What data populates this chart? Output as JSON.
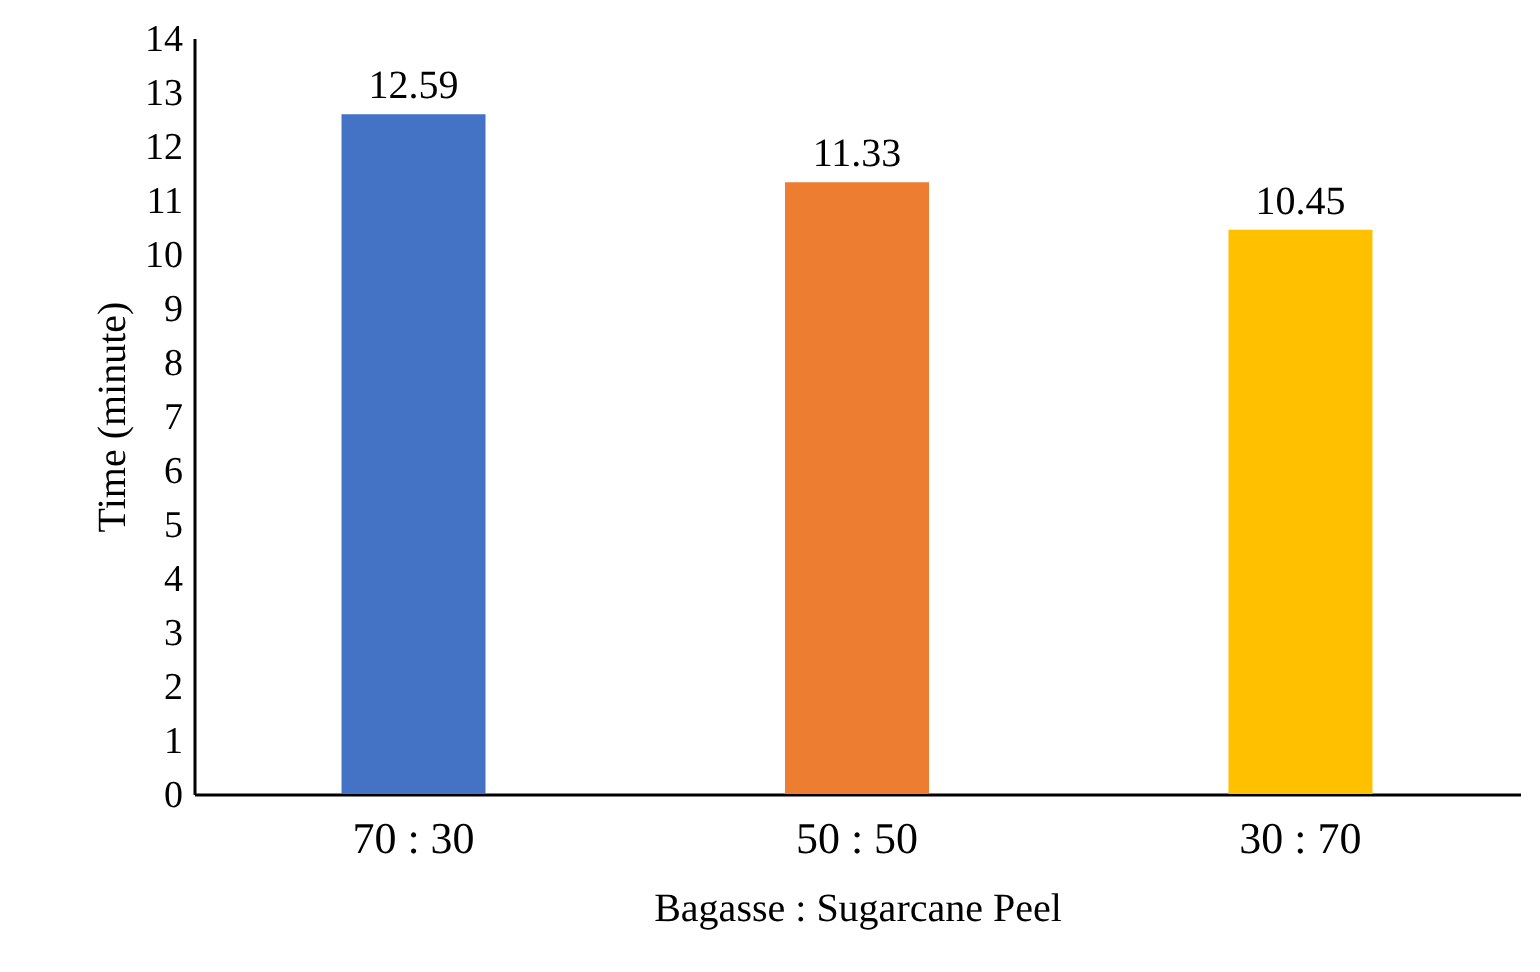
{
  "chart_data": {
    "type": "bar",
    "xlabel": "Bagasse : Sugarcane Peel",
    "ylabel": "Time (minute)",
    "categories": [
      "70 : 30",
      "50 : 50",
      "30 : 70"
    ],
    "values": [
      12.59,
      11.33,
      10.45
    ],
    "colors": [
      "#4472c4",
      "#ed7d31",
      "#ffc000"
    ],
    "ylim": [
      0,
      14
    ],
    "yticks": [
      0,
      1,
      2,
      3,
      4,
      5,
      6,
      7,
      8,
      9,
      10,
      11,
      12,
      13,
      14
    ],
    "data_labels": true,
    "grid": false
  }
}
